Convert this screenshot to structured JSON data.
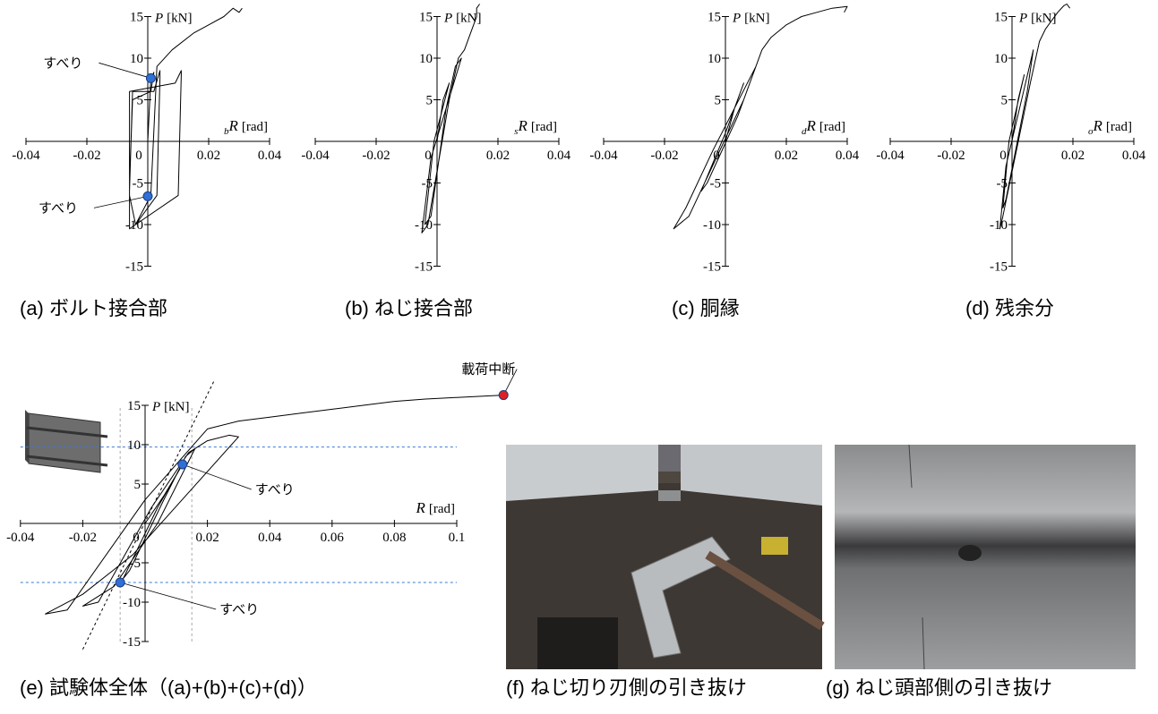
{
  "chart_data": [
    {
      "type": "line",
      "caption": "(a) ボルト接合部",
      "xlabel": {
        "sub": "b",
        "var": "R",
        "unit": "[rad]"
      },
      "ylabel": {
        "var": "P",
        "unit": "[kN]"
      },
      "xlim": [
        -0.04,
        0.04
      ],
      "ylim": [
        -15,
        15
      ],
      "xticks": [
        -0.04,
        -0.02,
        0,
        0.02,
        0.04
      ],
      "yticks": [
        -15,
        -10,
        -5,
        5,
        10,
        15
      ],
      "series": [
        {
          "color": "#000000",
          "x": [
            0,
            0.001,
            0.002,
            0.001,
            -0.005,
            -0.006,
            -0.006,
            -0.004,
            0.003,
            0.004,
            0.004,
            0.002,
            -0.005,
            -0.006,
            -0.006,
            -0.004,
            0.01,
            0.011,
            0.011,
            0.009,
            -0.006,
            -0.006,
            -0.004,
            0.001,
            0.003,
            0.008,
            0.015,
            0.02,
            0.025,
            0.028,
            0.03,
            0.031
          ],
          "values": [
            0,
            7.5,
            8.3,
            6,
            5,
            -5,
            -10.5,
            -10,
            -6.5,
            7.6,
            8.5,
            6,
            6,
            -6,
            -10.5,
            -10,
            -6.5,
            8,
            8.5,
            7,
            6,
            -6.5,
            -10,
            -6.5,
            9,
            11,
            13,
            14,
            15,
            16,
            15.5,
            16
          ]
        }
      ],
      "points": [
        {
          "label": "すべり",
          "x": 0.001,
          "y": 7.6,
          "color": "#2f6fd6"
        },
        {
          "label": "すべり",
          "x": 0,
          "y": -6.6,
          "color": "#2f6fd6"
        }
      ]
    },
    {
      "type": "line",
      "caption": "(b) ねじ接合部",
      "xlabel": {
        "sub": "s",
        "var": "R",
        "unit": "[rad]"
      },
      "ylabel": {
        "var": "P",
        "unit": "[kN]"
      },
      "xlim": [
        -0.04,
        0.04
      ],
      "ylim": [
        -15,
        15
      ],
      "xticks": [
        -0.04,
        -0.02,
        0,
        0.02,
        0.04
      ],
      "yticks": [
        -15,
        -10,
        -5,
        5,
        10,
        15
      ],
      "series": [
        {
          "color": "#000000",
          "x": [
            0,
            0.002,
            0.004,
            -0.001,
            -0.004,
            -0.002,
            0.003,
            0.006,
            0.008,
            -0.002,
            -0.005,
            -0.003,
            0.004,
            0.007,
            0.009,
            0.011,
            0.012,
            0.013,
            0.013,
            0.014
          ],
          "values": [
            0,
            5,
            7,
            0,
            -10,
            -9,
            4,
            9,
            10,
            -2,
            -11,
            -10,
            5,
            10,
            11,
            13,
            14,
            15,
            16,
            16.5
          ]
        }
      ],
      "points": []
    },
    {
      "type": "line",
      "caption": "(c) 胴縁",
      "xlabel": {
        "sub": "d",
        "var": "R",
        "unit": "[rad]"
      },
      "ylabel": {
        "var": "P",
        "unit": "[kN]"
      },
      "xlim": [
        -0.04,
        0.04
      ],
      "ylim": [
        -15,
        15
      ],
      "xticks": [
        -0.04,
        -0.02,
        0,
        0.02,
        0.04
      ],
      "yticks": [
        -15,
        -10,
        -5,
        5,
        10,
        15
      ],
      "series": [
        {
          "color": "#000000",
          "x": [
            0,
            0.003,
            0.006,
            0,
            -0.008,
            -0.006,
            0.004,
            0.009,
            0.01,
            -0.004,
            -0.013,
            -0.017,
            -0.012,
            0.006,
            0.012,
            0.015,
            0.02,
            0.025,
            0.03,
            0.035,
            0.04,
            0.039
          ],
          "values": [
            0,
            4,
            7,
            1,
            -6,
            -5,
            3,
            8,
            9,
            -1,
            -8,
            -10.5,
            -9,
            5,
            11,
            12.5,
            14,
            15,
            15.5,
            16,
            16.2,
            15.5
          ]
        }
      ],
      "points": []
    },
    {
      "type": "line",
      "caption": "(d) 残余分",
      "xlabel": {
        "sub": "o",
        "var": "R",
        "unit": "[rad]"
      },
      "ylabel": {
        "var": "P",
        "unit": "[kN]"
      },
      "xlim": [
        -0.04,
        0.04
      ],
      "ylim": [
        -15,
        15
      ],
      "xticks": [
        -0.04,
        -0.02,
        0,
        0.02,
        0.04
      ],
      "yticks": [
        -15,
        -10,
        -5,
        5,
        10,
        15
      ],
      "series": [
        {
          "color": "#000000",
          "x": [
            0,
            0.002,
            0.004,
            -0.001,
            -0.003,
            -0.002,
            0.005,
            0.007,
            -0.002,
            -0.004,
            -0.003,
            0.006,
            0.009,
            0.011,
            0.013,
            0.015,
            0.017,
            0.018,
            0.019
          ],
          "values": [
            0,
            5,
            8,
            0,
            -8,
            -7,
            6,
            11,
            -3,
            -10.5,
            -9,
            7,
            12,
            13.5,
            14.5,
            15.5,
            16.3,
            16.5,
            16
          ]
        }
      ],
      "points": []
    },
    {
      "type": "line",
      "caption": "(e) 試験体全体（(a)+(b)+(c)+(d)）",
      "xlabel": {
        "var": "R",
        "unit": "[rad]"
      },
      "ylabel": {
        "var": "P",
        "unit": "[kN]"
      },
      "xlim": [
        -0.04,
        0.1
      ],
      "ylim": [
        -15,
        15
      ],
      "xticks": [
        -0.04,
        -0.02,
        0,
        0.02,
        0.04,
        0.06,
        0.08,
        0.1
      ],
      "yticks": [
        -15,
        -10,
        -5,
        5,
        10,
        15
      ],
      "series": [
        {
          "color": "#000000",
          "x": [
            0,
            0.006,
            0.012,
            0.004,
            -0.007,
            -0.005,
            0.006,
            0.013,
            0.016,
            0.004,
            -0.01,
            -0.02,
            -0.015,
            0.002,
            0.014,
            0.02,
            0.027,
            0.03,
            -0.004,
            -0.02,
            -0.032,
            -0.025,
            0,
            0.02,
            0.03,
            0.04,
            0.05,
            0.06,
            0.07,
            0.08,
            0.09,
            0.1,
            0.115
          ],
          "values": [
            0,
            3.5,
            7.5,
            2,
            -7,
            -6,
            3,
            8.5,
            9.5,
            0,
            -8,
            -10.5,
            -10,
            2,
            9,
            10.5,
            11.2,
            11,
            -4,
            -9,
            -11.5,
            -11,
            3,
            12,
            13,
            13.5,
            14,
            14.5,
            15,
            15.5,
            15.8,
            16,
            16.3
          ]
        }
      ],
      "points": [
        {
          "label": "すべり",
          "x": 0.012,
          "y": 7.5,
          "color": "#2f6fd6"
        },
        {
          "label": "すべり",
          "x": -0.008,
          "y": -7.5,
          "color": "#2f6fd6"
        },
        {
          "label": "載荷中断",
          "x": 0.115,
          "y": 16.3,
          "color": "#e02020"
        }
      ],
      "hlines": [
        {
          "value": 9.7,
          "color": "#3a78d8"
        },
        {
          "value": -7.5,
          "color": "#3a78d8"
        }
      ],
      "vlines": [
        {
          "value": -0.008,
          "color": "#aaaaaa"
        },
        {
          "value": 0.015,
          "color": "#aaaaaa"
        }
      ],
      "ref_line": {
        "x": [
          -0.02,
          0.022
        ],
        "y": [
          -16,
          18
        ],
        "color": "#000000"
      }
    }
  ],
  "photos": [
    {
      "caption": "(f) ねじ切り刃側の引き抜け"
    },
    {
      "caption": "(g) ねじ頭部側の引き抜け"
    }
  ]
}
